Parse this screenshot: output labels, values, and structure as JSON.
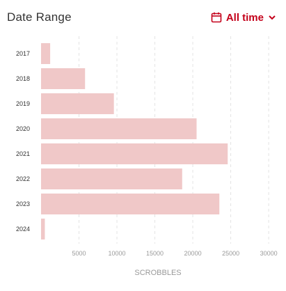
{
  "header": {
    "title": "Date Range",
    "range_label": "All time",
    "calendar_icon": "calendar-icon",
    "dropdown_icon": "chevron-down-icon",
    "accent_color": "#c4001a"
  },
  "chart_data": {
    "type": "bar",
    "orientation": "horizontal",
    "categories": [
      "2017",
      "2018",
      "2019",
      "2020",
      "2021",
      "2022",
      "2023",
      "2024"
    ],
    "values": [
      1200,
      5800,
      9600,
      20500,
      24600,
      18600,
      23500,
      500
    ],
    "xlabel": "SCROBBLES",
    "xticks": [
      5000,
      10000,
      15000,
      20000,
      25000,
      30000
    ],
    "xlim": [
      0,
      31000
    ],
    "grid": "vertical dashed",
    "bar_color": "#f0c8c8"
  }
}
